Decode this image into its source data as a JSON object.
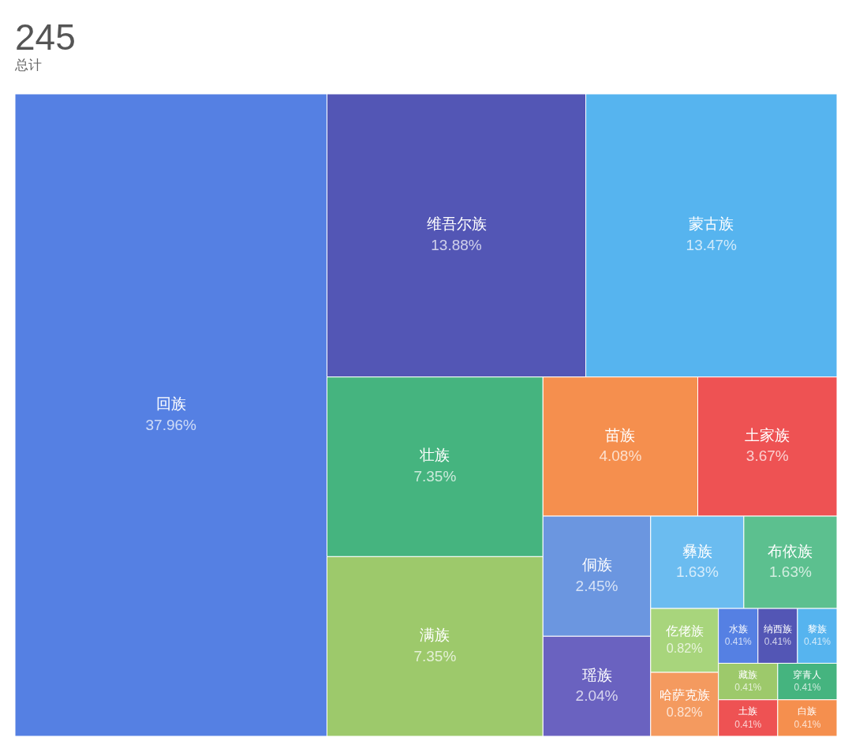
{
  "chart_data": {
    "type": "other",
    "title": "245",
    "subtitle": "总计",
    "categories": [
      "回族",
      "维吾尔族",
      "蒙古族",
      "壮族",
      "满族",
      "苗族",
      "土家族",
      "侗族",
      "瑶族",
      "彝族",
      "布依族",
      "仡佬族",
      "哈萨克族",
      "水族",
      "纳西族",
      "黎族",
      "藏族",
      "土族",
      "穿青人",
      "白族"
    ],
    "values": [
      37.96,
      13.88,
      13.47,
      7.35,
      7.35,
      4.08,
      3.67,
      2.45,
      2.04,
      1.63,
      1.63,
      0.82,
      0.82,
      0.41,
      0.41,
      0.41,
      0.41,
      0.41,
      0.41,
      0.41
    ],
    "value_labels": [
      "37.96%",
      "13.88%",
      "13.47%",
      "7.35%",
      "7.35%",
      "4.08%",
      "3.67%",
      "2.45%",
      "2.04%",
      "1.63%",
      "1.63%",
      "0.82%",
      "0.82%",
      "0.41%",
      "0.41%",
      "0.41%",
      "0.41%",
      "0.41%",
      "0.41%",
      "0.41%"
    ],
    "colors": [
      "#5580e3",
      "#5356b5",
      "#56b4ef",
      "#45b47f",
      "#9dc96b",
      "#f58f4e",
      "#ee5253",
      "#6b96e0",
      "#6a62c0",
      "#6bbcf0",
      "#5cc08f",
      "#a8d57c",
      "#f49a5f",
      "#5580e3",
      "#5356b5",
      "#56b4ef",
      "#9dc96b",
      "#ee5253",
      "#45b47f",
      "#f58f4e"
    ]
  }
}
